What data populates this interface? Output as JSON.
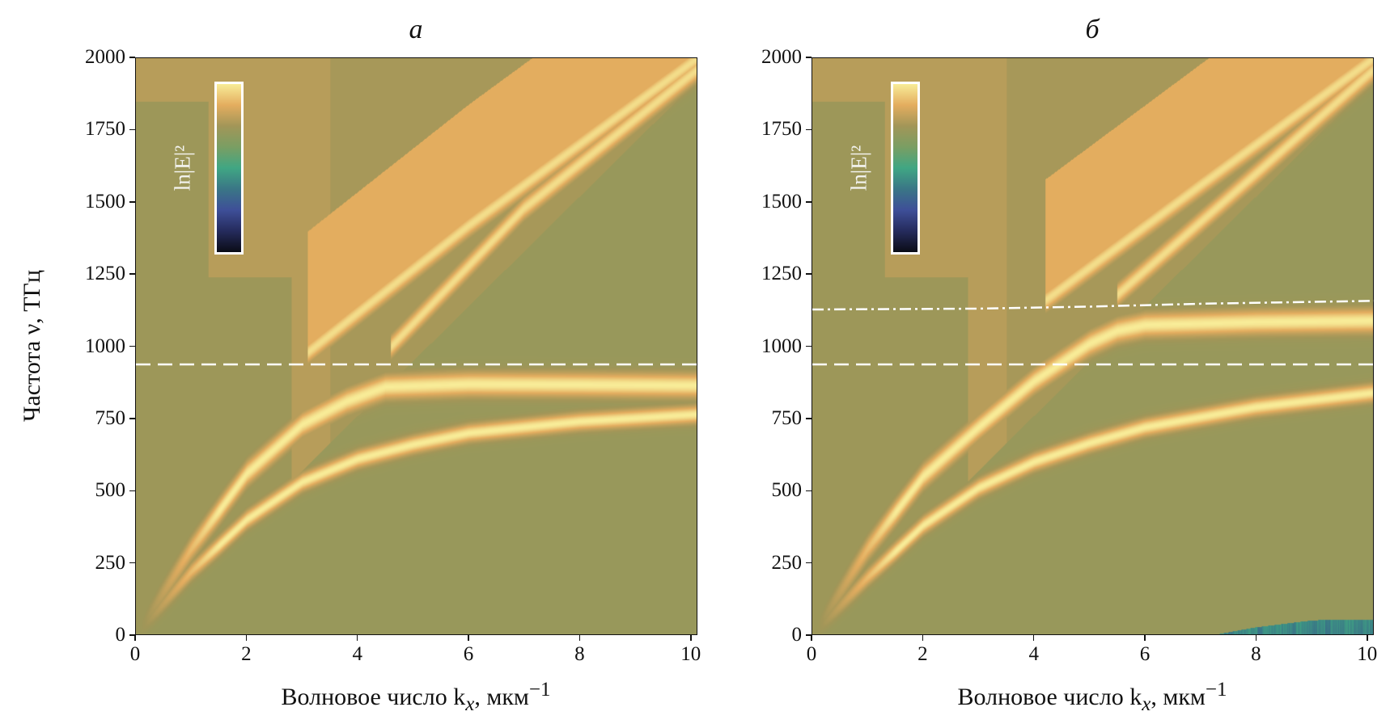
{
  "chart_data": [
    {
      "type": "heatmap",
      "title": "а",
      "xlabel": "Волновое число k",
      "xlabel_sub": "x",
      "xlabel_unit": ", мкм",
      "xlabel_sup": "−1",
      "ylabel": "Частота ν, ТГц",
      "xlim": [
        0,
        10.12
      ],
      "ylim": [
        0,
        2000
      ],
      "xticks": [
        "0",
        "2",
        "4",
        "6",
        "8",
        "10"
      ],
      "yticks": [
        "0",
        "250",
        "500",
        "750",
        "1000",
        "1250",
        "1500",
        "1750",
        "2000"
      ],
      "colorbar_label": "ln|E|²",
      "colormap": [
        "#0a0c16",
        "#252b5c",
        "#3e4f98",
        "#3a7686",
        "#40a683",
        "#7a9e63",
        "#a29658",
        "#e4ad5f",
        "#f8ec98"
      ],
      "dashed_line": {
        "nu": 940,
        "color": "#ffffff"
      },
      "ridges": [
        {
          "k": [
            0,
            1,
            2,
            3,
            4,
            5,
            6,
            8,
            10.12
          ],
          "nu": [
            0,
            220,
            400,
            530,
            610,
            660,
            700,
            740,
            765
          ]
        },
        {
          "k": [
            0,
            1,
            2,
            3,
            3.8,
            4.5,
            6,
            8,
            10.12
          ],
          "nu": [
            0,
            300,
            560,
            730,
            810,
            860,
            870,
            868,
            865
          ]
        },
        {
          "k": [
            3.1,
            6,
            10.12
          ],
          "nu": [
            980,
            1420,
            2000
          ]
        },
        {
          "k": [
            4.6,
            7,
            10.12
          ],
          "nu": [
            1000,
            1480,
            1960
          ]
        }
      ]
    },
    {
      "type": "heatmap",
      "title": "б",
      "xlabel": "Волновое число k",
      "xlabel_sub": "x",
      "xlabel_unit": ", мкм",
      "xlabel_sup": "−1",
      "xlim": [
        0,
        10.12
      ],
      "ylim": [
        0,
        2000
      ],
      "xticks": [
        "0",
        "2",
        "4",
        "6",
        "8",
        "10"
      ],
      "yticks": [
        "0",
        "250",
        "500",
        "750",
        "1000",
        "1250",
        "1500",
        "1750",
        "2000"
      ],
      "colorbar_label": "ln|E|²",
      "colormap": [
        "#0a0c16",
        "#252b5c",
        "#3e4f98",
        "#3a7686",
        "#40a683",
        "#7a9e63",
        "#a29658",
        "#e4ad5f",
        "#f8ec98"
      ],
      "dashed_line": {
        "nu": 940,
        "color": "#ffffff"
      },
      "dashdot_line": {
        "k": [
          0,
          3,
          5,
          7,
          10.12
        ],
        "nu": [
          1130,
          1133,
          1140,
          1150,
          1160
        ],
        "color": "#ffffff"
      },
      "ridges": [
        {
          "k": [
            0,
            1,
            2,
            3,
            4,
            5,
            6,
            8,
            10.12
          ],
          "nu": [
            0,
            200,
            380,
            510,
            600,
            665,
            720,
            790,
            840
          ]
        },
        {
          "k": [
            0,
            1,
            2,
            3,
            4,
            5,
            5.5,
            6,
            8,
            10.12
          ],
          "nu": [
            0,
            300,
            550,
            720,
            880,
            1010,
            1055,
            1075,
            1085,
            1090
          ]
        },
        {
          "k": [
            4.2,
            7,
            10.12
          ],
          "nu": [
            1160,
            1560,
            2000
          ]
        },
        {
          "k": [
            5.5,
            8,
            10.12
          ],
          "nu": [
            1180,
            1600,
            1960
          ]
        }
      ]
    }
  ]
}
